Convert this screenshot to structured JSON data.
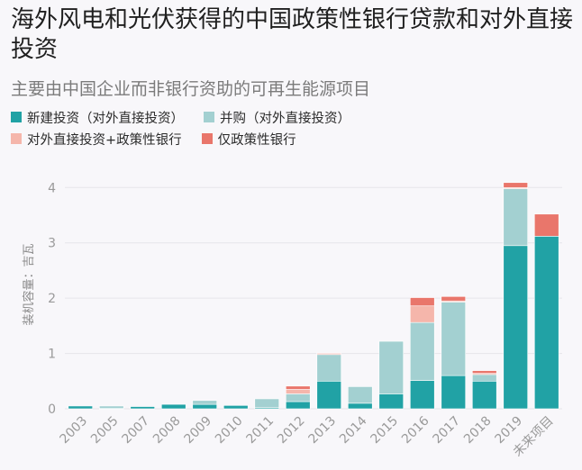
{
  "title": "海外风电和光伏获得的中国政策性银行贷款和对外直接投资",
  "subtitle": "主要由中国企业而非银行资助的可再生能源项目",
  "legend": [
    {
      "label": "新建投资（对外直接投资）",
      "color": "#21a2a5"
    },
    {
      "label": "并购（对外直接投资）",
      "color": "#a3d0d1"
    },
    {
      "label": "对外直接投资+政策性银行",
      "color": "#f5b6ab"
    },
    {
      "label": "仅政策性银行",
      "color": "#e9766b"
    }
  ],
  "chart_data": {
    "type": "bar",
    "stacked": true,
    "title": "海外风电和光伏获得的中国政策性银行贷款和对外直接投资",
    "subtitle": "主要由中国企业而非银行资助的可再生能源项目",
    "xlabel": "",
    "ylabel": "装机容量：吉瓦",
    "ylim": [
      0,
      4.2
    ],
    "yticks": [
      0,
      1,
      2,
      3,
      4
    ],
    "grid": true,
    "legend_position": "top-left",
    "categories": [
      "2003",
      "2005",
      "2007",
      "2008",
      "2009",
      "2010",
      "2011",
      "2012",
      "2013",
      "2014",
      "2015",
      "2016",
      "2017",
      "2018",
      "2019",
      "未来项目"
    ],
    "series": [
      {
        "name": "新建投资（对外直接投资）",
        "color": "#21a2a5",
        "values": [
          0.05,
          0.01,
          0.04,
          0.08,
          0.08,
          0.06,
          0.02,
          0.13,
          0.5,
          0.1,
          0.27,
          0.51,
          0.6,
          0.5,
          2.95,
          3.12
        ]
      },
      {
        "name": "并购（对外直接投资）",
        "color": "#a3d0d1",
        "values": [
          0.0,
          0.04,
          0.0,
          0.0,
          0.07,
          0.0,
          0.16,
          0.14,
          0.48,
          0.3,
          0.95,
          1.05,
          1.33,
          0.12,
          1.03,
          0.0
        ]
      },
      {
        "name": "对外直接投资+政策性银行",
        "color": "#f5b6ab",
        "values": [
          0.0,
          0.0,
          0.0,
          0.0,
          0.0,
          0.0,
          0.0,
          0.08,
          0.02,
          0.0,
          0.0,
          0.3,
          0.02,
          0.02,
          0.02,
          0.0
        ]
      },
      {
        "name": "仅政策性银行",
        "color": "#e9766b",
        "values": [
          0.0,
          0.0,
          0.0,
          0.0,
          0.0,
          0.0,
          0.0,
          0.06,
          0.01,
          0.0,
          0.0,
          0.15,
          0.08,
          0.05,
          0.09,
          0.4
        ]
      }
    ]
  }
}
